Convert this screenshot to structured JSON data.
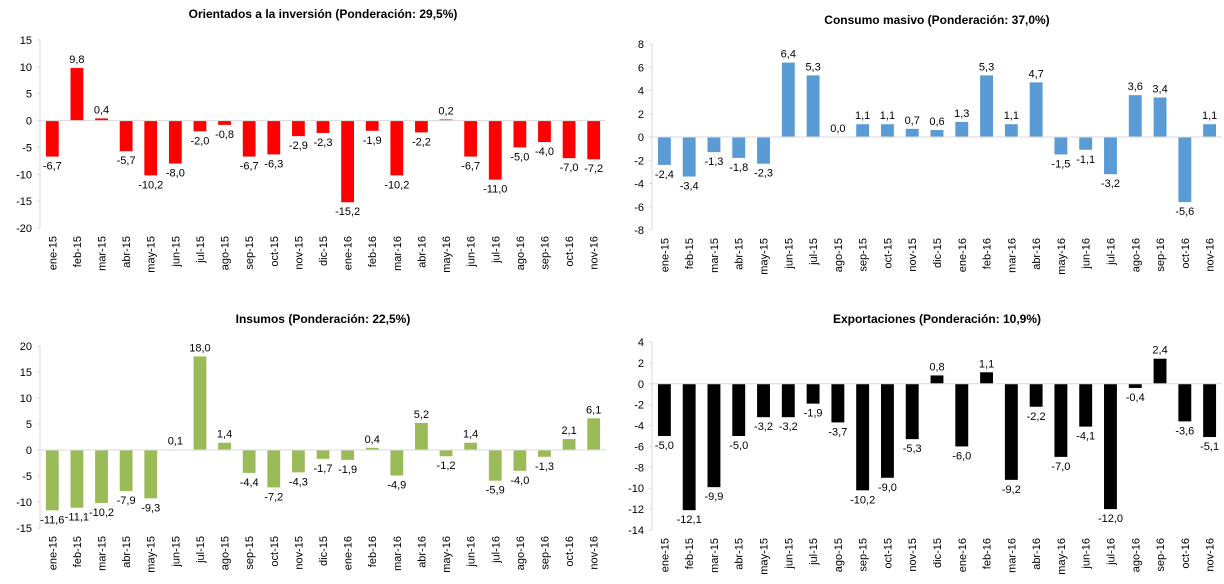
{
  "chart_data": [
    {
      "type": "bar",
      "title": "Orientados a la inversión (Ponderación: 29,5%)",
      "categories": [
        "ene-15",
        "feb-15",
        "mar-15",
        "abr-15",
        "may-15",
        "jun-15",
        "jul-15",
        "ago-15",
        "sep-15",
        "oct-15",
        "nov-15",
        "dic-15",
        "ene-16",
        "feb-16",
        "mar-16",
        "abr-16",
        "may-16",
        "jun-16",
        "jul-16",
        "ago-16",
        "sep-16",
        "oct-16",
        "nov-16"
      ],
      "values": [
        -6.7,
        9.8,
        0.4,
        -5.7,
        -10.2,
        -8.0,
        -2.0,
        -0.8,
        -6.7,
        -6.3,
        -2.9,
        -2.3,
        -15.2,
        -1.9,
        -10.2,
        -2.2,
        0.2,
        -6.7,
        -11.0,
        -5.0,
        -4.0,
        -7.0,
        -7.2
      ],
      "value_labels": [
        "-6,7",
        "9,8",
        "0,4",
        "-5,7",
        "-10,2",
        "-8,0",
        "-2,0",
        "-0,8",
        "-6,7",
        "-6,3",
        "-2,9",
        "-2,3",
        "-15,2",
        "-1,9",
        "-10,2",
        "-2,2",
        "0,2",
        "-6,7",
        "-11,0",
        "-5,0",
        "-4,0",
        "-7,0",
        "-7,2"
      ],
      "color": "#ff0000",
      "ylim": [
        -20,
        15
      ],
      "yticks": [
        -20,
        -15,
        -10,
        -5,
        0,
        5,
        10,
        15
      ]
    },
    {
      "type": "bar",
      "title": "Consumo masivo (Ponderación: 37,0%)",
      "categories": [
        "ene-15",
        "feb-15",
        "mar-15",
        "abr-15",
        "may-15",
        "jun-15",
        "jul-15",
        "ago-15",
        "sep-15",
        "oct-15",
        "nov-15",
        "dic-15",
        "ene-16",
        "feb-16",
        "mar-16",
        "abr-16",
        "may-16",
        "jun-16",
        "jul-16",
        "ago-16",
        "sep-16",
        "oct-16",
        "nov-16"
      ],
      "values": [
        -2.4,
        -3.4,
        -1.3,
        -1.8,
        -2.3,
        6.4,
        5.3,
        0.0,
        1.1,
        1.1,
        0.7,
        0.6,
        1.3,
        5.3,
        1.1,
        4.7,
        -1.5,
        -1.1,
        -3.2,
        3.6,
        3.4,
        -5.6,
        1.1
      ],
      "value_labels": [
        "-2,4",
        "-3,4",
        "-1,3",
        "-1,8",
        "-2,3",
        "6,4",
        "5,3",
        "0,0",
        "1,1",
        "1,1",
        "0,7",
        "0,6",
        "1,3",
        "5,3",
        "1,1",
        "4,7",
        "-1,5",
        "-1,1",
        "-3,2",
        "3,6",
        "3,4",
        "-5,6",
        "1,1"
      ],
      "color": "#5b9bd5",
      "ylim": [
        -8,
        8
      ],
      "yticks": [
        -8,
        -6,
        -4,
        -2,
        0,
        2,
        4,
        6,
        8
      ]
    },
    {
      "type": "bar",
      "title": "Insumos (Ponderación: 22,5%)",
      "categories": [
        "ene-15",
        "feb-15",
        "mar-15",
        "abr-15",
        "may-15",
        "jun-15",
        "jul-15",
        "ago-15",
        "sep-15",
        "oct-15",
        "nov-15",
        "dic-15",
        "ene-16",
        "feb-16",
        "mar-16",
        "abr-16",
        "may-16",
        "jun-16",
        "jul-16",
        "ago-16",
        "sep-16",
        "oct-16",
        "nov-16"
      ],
      "values": [
        -11.6,
        -11.1,
        -10.2,
        -7.9,
        -9.3,
        0.1,
        18.0,
        1.4,
        -4.4,
        -7.2,
        -4.3,
        -1.7,
        -1.9,
        0.4,
        -4.9,
        5.2,
        -1.2,
        1.4,
        -5.9,
        -4.0,
        -1.3,
        2.1,
        6.1
      ],
      "value_labels": [
        "-11,6",
        "-11,1",
        "-10,2",
        "-7,9",
        "-9,3",
        "0,1",
        "18,0",
        "1,4",
        "-4,4",
        "-7,2",
        "-4,3",
        "-1,7",
        "-1,9",
        "0,4",
        "-4,9",
        "5,2",
        "-1,2",
        "1,4",
        "-5,9",
        "-4,0",
        "-1,3",
        "2,1",
        "6,1"
      ],
      "color": "#9bbb59",
      "ylim": [
        -15,
        20
      ],
      "yticks": [
        -15,
        -10,
        -5,
        0,
        5,
        10,
        15,
        20
      ]
    },
    {
      "type": "bar",
      "title": "Exportaciones (Ponderación: 10,9%)",
      "categories": [
        "ene-15",
        "feb-15",
        "mar-15",
        "abr-15",
        "may-15",
        "jun-15",
        "jul-15",
        "ago-15",
        "sep-15",
        "oct-15",
        "nov-15",
        "dic-15",
        "ene-16",
        "feb-16",
        "mar-16",
        "abr-16",
        "may-16",
        "jun-16",
        "jul-16",
        "ago-16",
        "sep-16",
        "oct-16",
        "nov-16"
      ],
      "values": [
        -5.0,
        -12.1,
        -9.9,
        -5.0,
        -3.2,
        -3.2,
        -1.9,
        -3.7,
        -10.2,
        -9.0,
        -5.3,
        0.8,
        -6.0,
        1.1,
        -9.2,
        -2.2,
        -7.0,
        -4.1,
        -12.0,
        -0.4,
        2.4,
        -3.6,
        -5.1
      ],
      "value_labels": [
        "-5,0",
        "-12,1",
        "-9,9",
        "-5,0",
        "-3,2",
        "-3,2",
        "-1,9",
        "-3,7",
        "-10,2",
        "-9,0",
        "-5,3",
        "0,8",
        "-6,0",
        "1,1",
        "-9,2",
        "-2,2",
        "-7,0",
        "-4,1",
        "-12,0",
        "-0,4",
        "2,4",
        "-3,6",
        "-5,1"
      ],
      "color": "#000000",
      "ylim": [
        -14,
        4
      ],
      "yticks": [
        -14,
        -12,
        -10,
        -8,
        -6,
        -4,
        -2,
        0,
        2,
        4
      ]
    }
  ]
}
